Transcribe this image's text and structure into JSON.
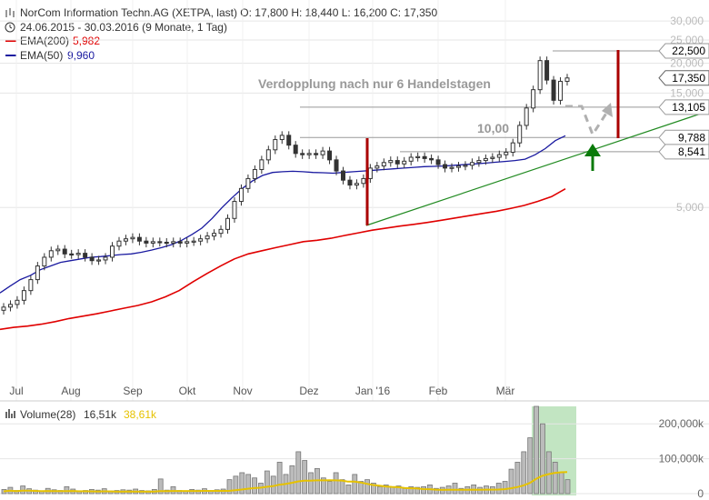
{
  "header": {
    "title_line": "NorCom Information Techn.AG (XETPA, last)  O: 17,800  H: 18,440  L: 16,200  C: 17,350",
    "period_line": "24.06.2015 - 30.03.2016 (9 Monate, 1 Tag)",
    "ema200_name": "EMA(200)",
    "ema200_value": "5,982",
    "ema50_name": "EMA(50)",
    "ema50_value": "9,960",
    "volume_name": "Volume(28)",
    "volume_value1": "16,51k",
    "volume_value2": "38,61k"
  },
  "colors": {
    "candle": "#333333",
    "ema200": "#e00000",
    "ema50": "#1a1aa0",
    "trend": "#228b22",
    "red_bar": "#aa0000",
    "volume_avg": "#e6c200",
    "volume_highlight": "#8fcf8f",
    "green_arrow": "#0a7a0a",
    "grey_arrow": "#b0b0b0"
  },
  "annotations": {
    "headline": "Verdopplung nach nur 6 Handelstagen",
    "level_10": "10,00"
  },
  "price_labels": [
    "22,500",
    "17,350",
    "13,105",
    "9,788",
    "8,541"
  ],
  "chart_data": {
    "type": "candlestick",
    "y_scale": "log",
    "price_axis": {
      "ticks": [
        "30,000",
        "25,000",
        "20,000",
        "15,000",
        "5,000"
      ],
      "tick_values": [
        30,
        25,
        20,
        15,
        5
      ]
    },
    "volume_axis": {
      "ticks": [
        "200,000k",
        "100,000k",
        "0"
      ],
      "tick_values": [
        200000,
        100000,
        0
      ]
    },
    "x_axis": {
      "ticks": [
        "Jul",
        "Aug",
        "Sep",
        "Okt",
        "Nov",
        "Dez",
        "Jan '16",
        "Feb",
        "Mär"
      ]
    },
    "horizontal_levels": [
      22.5,
      13.105,
      9.788,
      8.541
    ],
    "price_close": [
      1.92,
      1.97,
      2.05,
      2.25,
      2.5,
      2.85,
      3.1,
      3.3,
      3.35,
      3.2,
      3.18,
      3.22,
      3.1,
      3.0,
      3.02,
      3.1,
      3.45,
      3.62,
      3.7,
      3.75,
      3.62,
      3.55,
      3.6,
      3.58,
      3.55,
      3.6,
      3.55,
      3.6,
      3.62,
      3.7,
      3.8,
      3.9,
      4.05,
      4.5,
      5.3,
      6.0,
      6.6,
      7.2,
      7.9,
      8.7,
      9.6,
      10.0,
      9.1,
      8.4,
      8.3,
      8.4,
      8.3,
      8.6,
      7.9,
      7.1,
      6.5,
      6.2,
      6.3,
      6.6,
      7.3,
      7.45,
      7.7,
      7.85,
      7.6,
      7.8,
      8.1,
      8.15,
      8.0,
      7.9,
      7.55,
      7.3,
      7.35,
      7.45,
      7.5,
      7.7,
      7.85,
      8.0,
      8.1,
      8.3,
      8.5,
      9.3,
      11.0,
      13.0,
      15.5,
      20.5,
      17.0,
      14.0,
      16.8,
      17.35
    ],
    "ema50": [
      2.2,
      2.35,
      2.5,
      2.6,
      2.75,
      2.85,
      2.95,
      3.0,
      3.05,
      3.1,
      3.12,
      3.15,
      3.18,
      3.2,
      3.25,
      3.32,
      3.4,
      3.5,
      3.65,
      3.85,
      4.1,
      4.5,
      5.0,
      5.5,
      6.0,
      6.45,
      6.8,
      7.0,
      7.05,
      7.08,
      7.05,
      7.0,
      6.98,
      6.95,
      7.0,
      7.05,
      7.1,
      7.15,
      7.2,
      7.25,
      7.3,
      7.35,
      7.4,
      7.42,
      7.45,
      7.5,
      7.55,
      7.6,
      7.65,
      7.72,
      7.78,
      7.85,
      7.95,
      8.3,
      8.8,
      9.5,
      9.96
    ],
    "ema200": [
      1.55,
      1.58,
      1.6,
      1.63,
      1.67,
      1.72,
      1.76,
      1.8,
      1.85,
      1.9,
      1.95,
      2.02,
      2.12,
      2.25,
      2.45,
      2.65,
      2.85,
      3.05,
      3.2,
      3.3,
      3.4,
      3.5,
      3.6,
      3.65,
      3.72,
      3.82,
      3.92,
      4.02,
      4.1,
      4.18,
      4.25,
      4.33,
      4.42,
      4.52,
      4.62,
      4.72,
      4.82,
      4.95,
      5.1,
      5.3,
      5.55,
      5.982
    ],
    "volume": [
      12,
      18,
      9,
      22,
      14,
      10,
      8,
      15,
      11,
      9,
      20,
      13,
      7,
      9,
      12,
      10,
      14,
      8,
      9,
      11,
      10,
      13,
      9,
      8,
      12,
      42,
      10,
      20,
      9,
      8,
      12,
      10,
      14,
      9,
      11,
      13,
      40,
      50,
      60,
      55,
      45,
      30,
      65,
      50,
      90,
      55,
      80,
      120,
      95,
      60,
      72,
      45,
      35,
      60,
      40,
      25,
      55,
      35,
      40,
      30,
      20,
      25,
      18,
      22,
      15,
      20,
      18,
      20,
      25,
      15,
      18,
      22,
      30,
      15,
      20,
      25,
      18,
      22,
      20,
      30,
      35,
      70,
      90,
      120,
      160,
      250,
      200,
      120,
      90,
      60,
      40
    ],
    "volume_avg": [
      16.51,
      38.61
    ]
  }
}
